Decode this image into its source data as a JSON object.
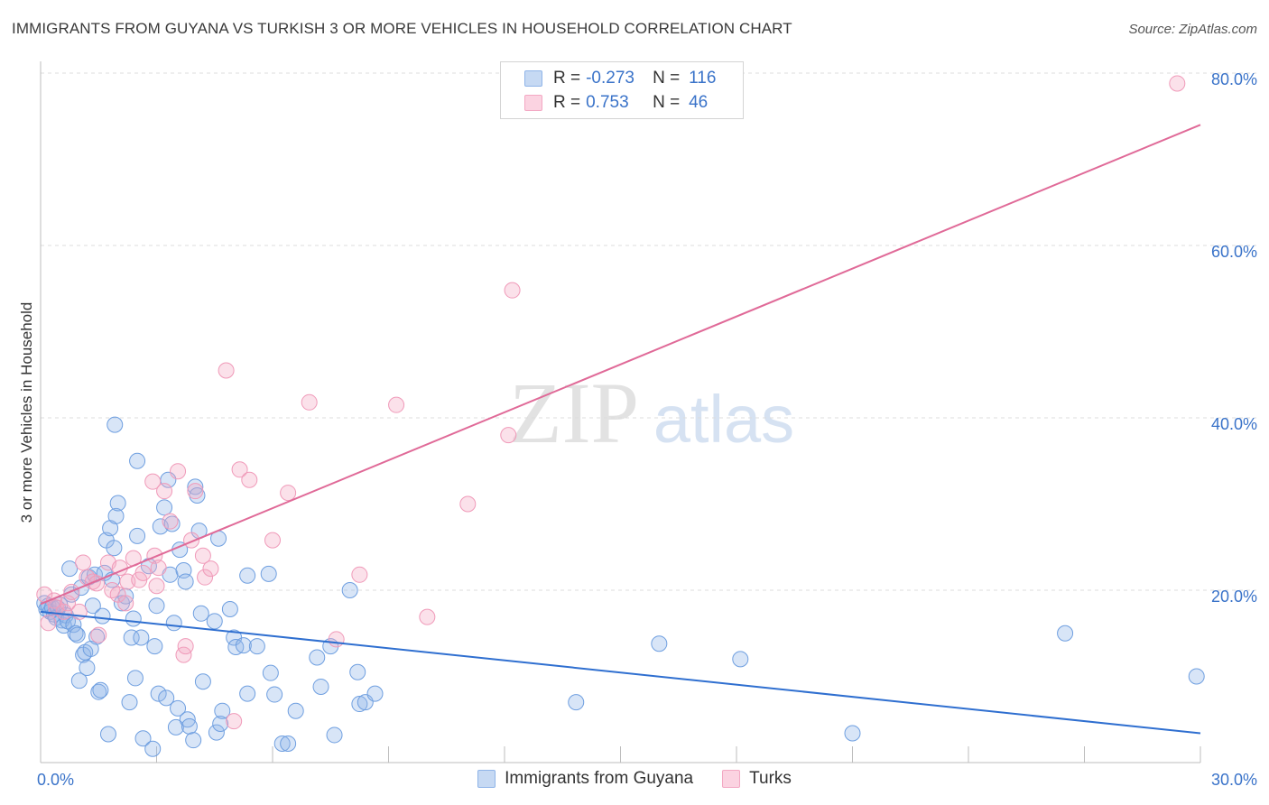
{
  "header": {
    "title": "IMMIGRANTS FROM GUYANA VS TURKISH 3 OR MORE VEHICLES IN HOUSEHOLD CORRELATION CHART",
    "source": "Source: ZipAtlas.com"
  },
  "watermark": {
    "zip": "ZIP",
    "atlas": "atlas"
  },
  "legend": {
    "rows": [
      {
        "r_label": "R =",
        "r_value": "-0.273",
        "n_label": "N =",
        "n_value": "116",
        "color": "#8fb4e8"
      },
      {
        "r_label": "R =",
        "r_value": "0.753",
        "n_label": "N =",
        "n_value": "46",
        "color": "#f3a8c3"
      }
    ]
  },
  "bottom_legend": [
    {
      "label": "Immigrants from Guyana",
      "color": "#8fb4e8"
    },
    {
      "label": "Turks",
      "color": "#f3a8c3"
    }
  ],
  "chart_data": {
    "type": "scatter",
    "title": "IMMIGRANTS FROM GUYANA VS TURKISH 3 OR MORE VEHICLES IN HOUSEHOLD CORRELATION CHART",
    "ylabel": "3 or more Vehicles in Household",
    "xlabel": "",
    "xlim": [
      0,
      30
    ],
    "ylim": [
      0,
      83
    ],
    "x_ticks": [
      {
        "value": 0,
        "label": "0.0%"
      },
      {
        "value": 30,
        "label": "30.0%"
      }
    ],
    "y_ticks": [
      {
        "value": 20,
        "label": "20.0%"
      },
      {
        "value": 40,
        "label": "40.0%"
      },
      {
        "value": 60,
        "label": "60.0%"
      },
      {
        "value": 80,
        "label": "80.0%"
      }
    ],
    "grid": true,
    "legend_position": "top-center",
    "series": [
      {
        "name": "Immigrants from Guyana",
        "color": "#6f9fe0",
        "line_color": "#2f6fd0",
        "trend": {
          "x": [
            0,
            30
          ],
          "y": [
            17.5,
            3.4
          ]
        },
        "points": [
          [
            0.1,
            18.5
          ],
          [
            0.15,
            17.8
          ],
          [
            0.2,
            18.2
          ],
          [
            0.25,
            17.5
          ],
          [
            0.3,
            18.0
          ],
          [
            0.35,
            17.2
          ],
          [
            0.4,
            16.8
          ],
          [
            0.45,
            17.9
          ],
          [
            0.5,
            18.3
          ],
          [
            0.55,
            16.5
          ],
          [
            0.6,
            15.9
          ],
          [
            0.65,
            17.1
          ],
          [
            0.7,
            16.4
          ],
          [
            0.75,
            22.5
          ],
          [
            0.8,
            19.5
          ],
          [
            0.85,
            16.0
          ],
          [
            0.9,
            15.0
          ],
          [
            0.95,
            14.8
          ],
          [
            1.0,
            9.5
          ],
          [
            1.05,
            20.3
          ],
          [
            1.1,
            12.5
          ],
          [
            1.15,
            12.8
          ],
          [
            1.2,
            11.0
          ],
          [
            1.25,
            21.5
          ],
          [
            1.3,
            13.2
          ],
          [
            1.35,
            18.2
          ],
          [
            1.4,
            21.8
          ],
          [
            1.45,
            14.6
          ],
          [
            1.5,
            8.2
          ],
          [
            1.55,
            8.4
          ],
          [
            1.6,
            17.0
          ],
          [
            1.65,
            22.0
          ],
          [
            1.7,
            25.8
          ],
          [
            1.75,
            3.3
          ],
          [
            1.8,
            27.2
          ],
          [
            1.85,
            21.2
          ],
          [
            1.9,
            24.9
          ],
          [
            1.95,
            28.6
          ],
          [
            2.0,
            30.1
          ],
          [
            1.92,
            39.2
          ],
          [
            2.1,
            18.5
          ],
          [
            2.2,
            19.3
          ],
          [
            2.3,
            7.0
          ],
          [
            2.35,
            14.5
          ],
          [
            2.4,
            16.7
          ],
          [
            2.45,
            9.8
          ],
          [
            2.5,
            35.0
          ],
          [
            2.5,
            26.3
          ],
          [
            2.6,
            14.5
          ],
          [
            2.65,
            2.8
          ],
          [
            2.8,
            22.8
          ],
          [
            2.9,
            1.6
          ],
          [
            2.95,
            13.5
          ],
          [
            3.0,
            18.2
          ],
          [
            3.05,
            8.0
          ],
          [
            3.1,
            27.4
          ],
          [
            3.2,
            29.6
          ],
          [
            3.25,
            7.5
          ],
          [
            3.3,
            32.8
          ],
          [
            3.35,
            21.8
          ],
          [
            3.4,
            27.7
          ],
          [
            3.45,
            16.2
          ],
          [
            3.5,
            4.1
          ],
          [
            3.55,
            6.3
          ],
          [
            3.6,
            24.7
          ],
          [
            3.7,
            22.3
          ],
          [
            3.75,
            21.0
          ],
          [
            3.8,
            5.0
          ],
          [
            3.85,
            4.2
          ],
          [
            3.95,
            2.6
          ],
          [
            4.0,
            32.0
          ],
          [
            4.05,
            31.0
          ],
          [
            4.1,
            26.9
          ],
          [
            4.15,
            17.3
          ],
          [
            4.2,
            9.4
          ],
          [
            4.5,
            16.4
          ],
          [
            4.55,
            3.5
          ],
          [
            4.6,
            26.0
          ],
          [
            4.65,
            4.5
          ],
          [
            4.7,
            6.0
          ],
          [
            4.9,
            17.8
          ],
          [
            5.0,
            14.5
          ],
          [
            5.05,
            13.4
          ],
          [
            5.25,
            13.6
          ],
          [
            5.35,
            8.0
          ],
          [
            5.35,
            21.7
          ],
          [
            5.6,
            13.5
          ],
          [
            5.9,
            21.9
          ],
          [
            5.95,
            10.4
          ],
          [
            6.05,
            7.9
          ],
          [
            6.25,
            2.2
          ],
          [
            6.4,
            2.2
          ],
          [
            6.6,
            6.0
          ],
          [
            7.15,
            12.2
          ],
          [
            7.25,
            8.8
          ],
          [
            7.5,
            13.5
          ],
          [
            7.6,
            3.2
          ],
          [
            8.0,
            20.0
          ],
          [
            8.2,
            10.5
          ],
          [
            8.25,
            6.8
          ],
          [
            8.4,
            7.0
          ],
          [
            8.65,
            8.0
          ],
          [
            13.85,
            7.0
          ],
          [
            16.0,
            13.8
          ],
          [
            18.1,
            12.0
          ],
          [
            26.5,
            15.0
          ],
          [
            29.9,
            10.0
          ],
          [
            21.0,
            3.4
          ]
        ]
      },
      {
        "name": "Turks",
        "color": "#f09ab9",
        "line_color": "#e06a98",
        "trend": {
          "x": [
            0,
            30
          ],
          "y": [
            18.4,
            74.0
          ]
        },
        "points": [
          [
            0.1,
            19.5
          ],
          [
            0.2,
            16.2
          ],
          [
            0.35,
            18.8
          ],
          [
            0.4,
            18.0
          ],
          [
            0.6,
            17.5
          ],
          [
            0.7,
            18.5
          ],
          [
            0.8,
            19.8
          ],
          [
            1.0,
            17.5
          ],
          [
            1.1,
            23.2
          ],
          [
            1.2,
            21.5
          ],
          [
            1.35,
            21.0
          ],
          [
            1.45,
            20.8
          ],
          [
            1.5,
            14.8
          ],
          [
            1.75,
            23.2
          ],
          [
            1.85,
            20.0
          ],
          [
            2.0,
            19.5
          ],
          [
            2.05,
            22.6
          ],
          [
            2.2,
            18.5
          ],
          [
            2.25,
            21.0
          ],
          [
            2.4,
            23.7
          ],
          [
            2.55,
            21.2
          ],
          [
            2.65,
            22.0
          ],
          [
            2.9,
            32.6
          ],
          [
            2.95,
            24.0
          ],
          [
            3.0,
            20.5
          ],
          [
            3.05,
            22.6
          ],
          [
            3.2,
            31.5
          ],
          [
            3.35,
            28.0
          ],
          [
            3.55,
            33.8
          ],
          [
            3.7,
            12.5
          ],
          [
            3.75,
            13.5
          ],
          [
            3.9,
            25.8
          ],
          [
            4.0,
            31.5
          ],
          [
            4.2,
            24.0
          ],
          [
            4.25,
            21.5
          ],
          [
            4.4,
            22.5
          ],
          [
            4.8,
            45.5
          ],
          [
            5.0,
            4.8
          ],
          [
            5.15,
            34.0
          ],
          [
            5.4,
            32.8
          ],
          [
            6.0,
            25.8
          ],
          [
            6.4,
            31.3
          ],
          [
            6.95,
            41.8
          ],
          [
            7.65,
            14.3
          ],
          [
            8.25,
            21.8
          ],
          [
            9.2,
            41.5
          ],
          [
            10.0,
            16.9
          ],
          [
            11.05,
            30.0
          ],
          [
            12.1,
            38.0
          ],
          [
            12.2,
            54.8
          ],
          [
            29.4,
            78.8
          ]
        ]
      }
    ]
  }
}
